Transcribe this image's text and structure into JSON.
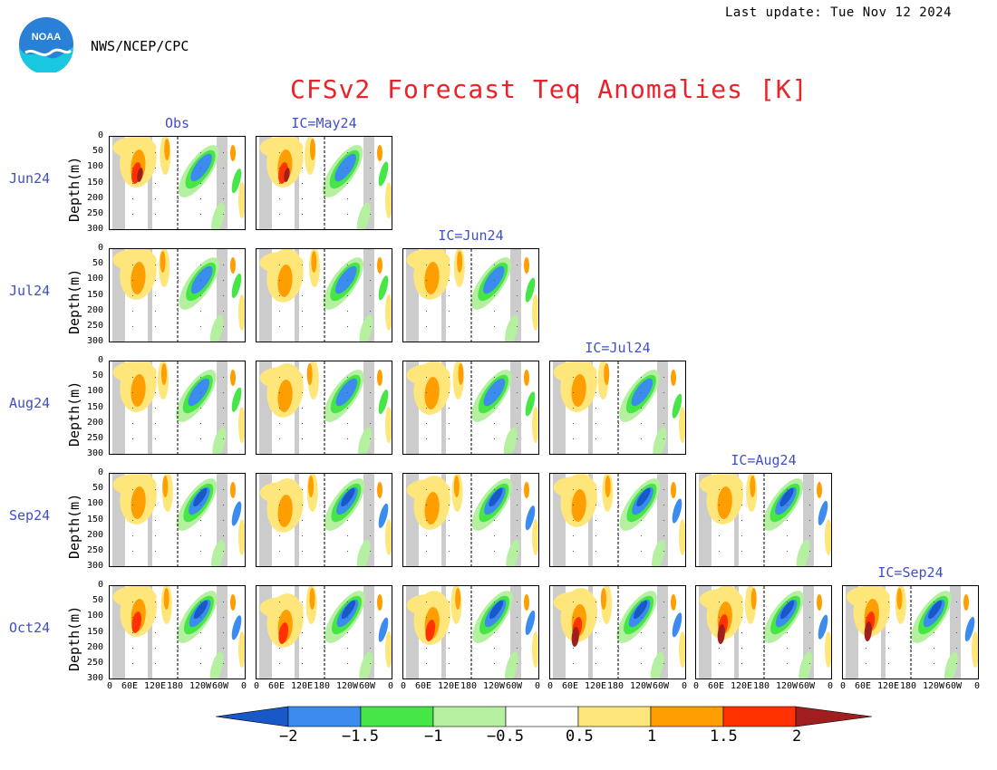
{
  "header": {
    "last_update": "Last update: Tue Nov 12 2024",
    "agency": "NWS/NCEP/CPC",
    "logo_text": "NOAA"
  },
  "chart_data": {
    "type": "heatmap",
    "title": "CFSv2 Forecast Teq Anomalies [K]",
    "ylabel": "Depth(m)",
    "yticks": [
      "0",
      "50",
      "100",
      "150",
      "200",
      "250",
      "300"
    ],
    "ylim": [
      300,
      0
    ],
    "xticks": [
      "0",
      "60E",
      "120E",
      "180",
      "120W",
      "60W",
      "0"
    ],
    "xlim": [
      "0",
      "0"
    ],
    "rows": [
      "Jun24",
      "Jul24",
      "Aug24",
      "Sep24",
      "Oct24"
    ],
    "columns": [
      "Obs",
      "IC=May24",
      "IC=Jun24",
      "IC=Jul24",
      "IC=Aug24",
      "IC=Sep24"
    ],
    "colorbar": {
      "levels": [
        "−2",
        "−1.5",
        "−1",
        "−0.5",
        "0.5",
        "1",
        "1.5",
        "2"
      ],
      "colors": {
        "lt_m2": "#1858c8",
        "m2_m15": "#3c8cf0",
        "m15_m1": "#46e646",
        "m1_m05": "#b4f0a0",
        "p05_p1": "#ffe67a",
        "p1_p15": "#ff9e00",
        "p15_p2": "#ff3200",
        "gt_p2": "#a01e1e"
      }
    }
  }
}
